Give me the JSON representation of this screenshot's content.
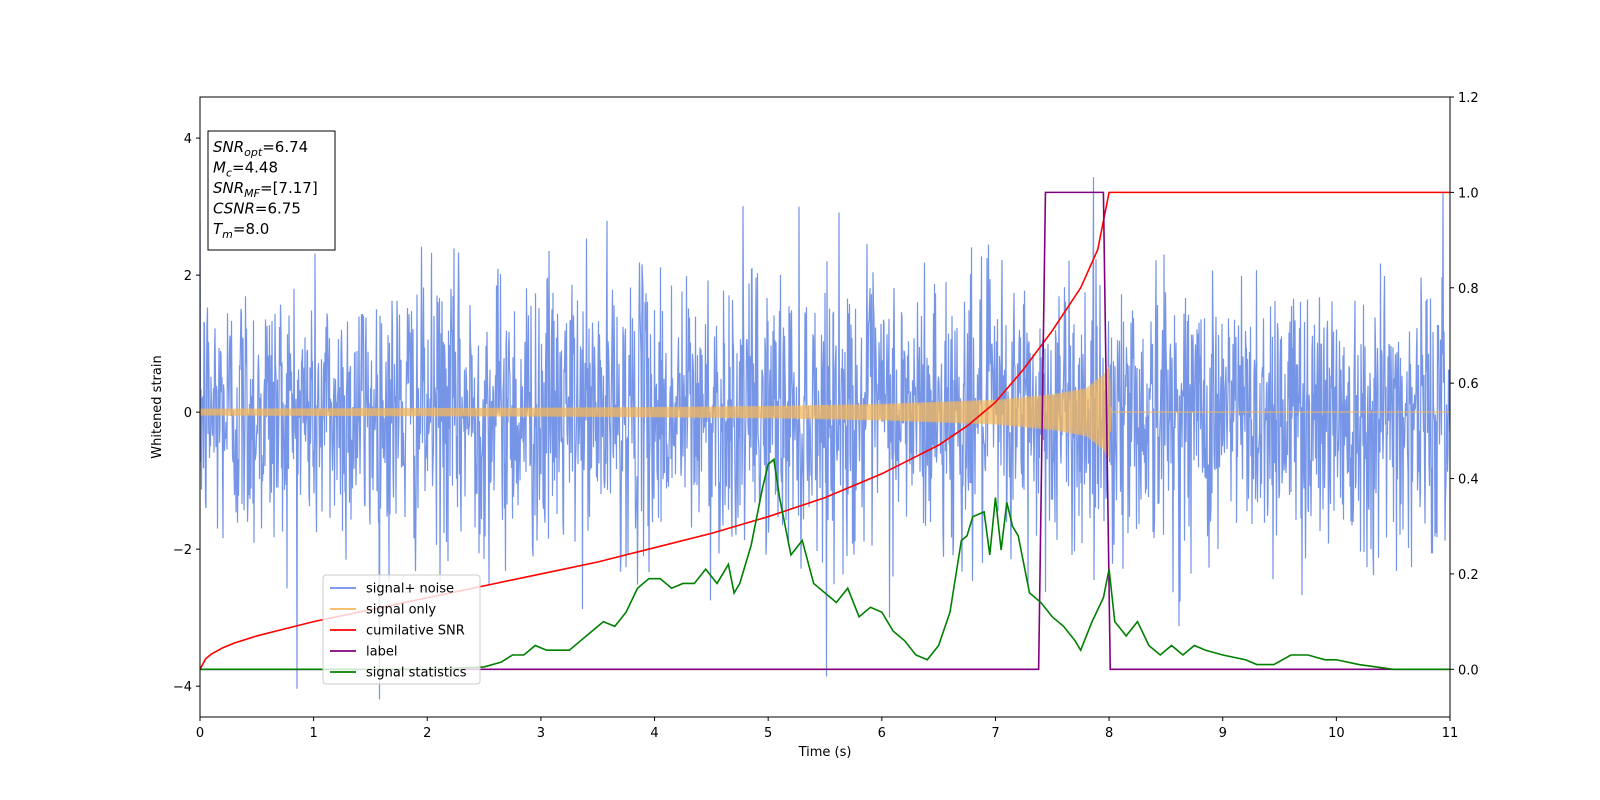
{
  "chart_data": {
    "type": "line",
    "xlabel": "Time (s)",
    "ylabel": "Whitened strain",
    "xlim": [
      0,
      11
    ],
    "ylim": [
      -4.45,
      4.6
    ],
    "y2lim": [
      -0.1,
      1.2
    ],
    "x_ticks": [
      0,
      1,
      2,
      3,
      4,
      5,
      6,
      7,
      8,
      9,
      10,
      11
    ],
    "y_ticks": [
      -4,
      -2,
      0,
      2,
      4
    ],
    "y2_ticks": [
      0.0,
      0.2,
      0.4,
      0.6,
      0.8,
      1.0,
      1.2
    ],
    "grid": false,
    "legend_position": "lower-left",
    "info_box": [
      {
        "base": "SNR",
        "sub": "opt",
        "value": "=6.74"
      },
      {
        "base": "M",
        "sub": "c",
        "value": "=4.48"
      },
      {
        "base": "SNR",
        "sub": "MF",
        "value": "=[7.17]"
      },
      {
        "base": "CSNR",
        "sub": "",
        "value": "=6.75"
      },
      {
        "base": "T",
        "sub": "m",
        "value": "=8.0"
      }
    ],
    "series": [
      {
        "name": "signal+ noise",
        "axis": "left",
        "color": "#6f8fe6",
        "kind": "gaussian_noise",
        "sigma": 1.0,
        "x_range": [
          0,
          11
        ]
      },
      {
        "name": "signal only",
        "axis": "left",
        "color": "#f5b75a",
        "kind": "chirp_envelope",
        "points": [
          [
            0,
            0.05
          ],
          [
            1,
            0.055
          ],
          [
            2,
            0.06
          ],
          [
            3,
            0.065
          ],
          [
            4,
            0.075
          ],
          [
            5,
            0.09
          ],
          [
            6,
            0.12
          ],
          [
            7,
            0.18
          ],
          [
            7.5,
            0.26
          ],
          [
            7.8,
            0.35
          ],
          [
            7.95,
            0.55
          ],
          [
            8.0,
            0.68
          ],
          [
            8.02,
            0.0
          ],
          [
            11,
            0.0
          ]
        ]
      },
      {
        "name": "cumilative SNR",
        "axis": "right",
        "color": "#ff0000",
        "x": [
          0,
          0.05,
          0.1,
          0.2,
          0.3,
          0.5,
          0.75,
          1,
          1.5,
          2,
          2.5,
          3,
          3.5,
          4,
          4.5,
          5,
          5.5,
          6,
          6.25,
          6.5,
          6.75,
          7,
          7.25,
          7.5,
          7.75,
          7.9,
          8.0,
          11
        ],
        "values": [
          0.0,
          0.022,
          0.032,
          0.045,
          0.055,
          0.07,
          0.085,
          0.1,
          0.125,
          0.15,
          0.175,
          0.2,
          0.225,
          0.255,
          0.285,
          0.32,
          0.36,
          0.41,
          0.44,
          0.47,
          0.51,
          0.56,
          0.63,
          0.71,
          0.8,
          0.88,
          1.0,
          1.0
        ]
      },
      {
        "name": "label",
        "axis": "right",
        "color": "#800080",
        "x": [
          0,
          7.38,
          7.44,
          7.95,
          8.01,
          11
        ],
        "values": [
          0,
          0,
          1,
          1,
          0,
          0
        ]
      },
      {
        "name": "signal statistics",
        "axis": "right",
        "color": "#008000",
        "x": [
          0,
          0.5,
          1,
          1.5,
          2,
          2.25,
          2.5,
          2.65,
          2.75,
          2.85,
          2.95,
          3.05,
          3.15,
          3.25,
          3.35,
          3.45,
          3.55,
          3.65,
          3.75,
          3.85,
          3.95,
          4.05,
          4.15,
          4.25,
          4.35,
          4.45,
          4.55,
          4.65,
          4.7,
          4.75,
          4.8,
          4.85,
          4.9,
          4.95,
          5.0,
          5.05,
          5.1,
          5.2,
          5.3,
          5.4,
          5.5,
          5.6,
          5.7,
          5.8,
          5.9,
          6.0,
          6.1,
          6.2,
          6.3,
          6.4,
          6.5,
          6.6,
          6.7,
          6.75,
          6.8,
          6.9,
          6.95,
          7.0,
          7.05,
          7.1,
          7.15,
          7.2,
          7.3,
          7.4,
          7.5,
          7.6,
          7.7,
          7.75,
          7.85,
          7.95,
          8.0,
          8.05,
          8.15,
          8.25,
          8.35,
          8.45,
          8.55,
          8.65,
          8.75,
          8.85,
          9.0,
          9.2,
          9.3,
          9.45,
          9.6,
          9.75,
          9.9,
          10.0,
          10.2,
          10.5,
          10.75,
          11.0
        ],
        "values": [
          0.0,
          0.0,
          0.0,
          0.0,
          0.0,
          0.002,
          0.005,
          0.015,
          0.03,
          0.03,
          0.05,
          0.04,
          0.04,
          0.04,
          0.06,
          0.08,
          0.1,
          0.09,
          0.12,
          0.17,
          0.19,
          0.19,
          0.17,
          0.18,
          0.18,
          0.21,
          0.18,
          0.22,
          0.16,
          0.18,
          0.22,
          0.26,
          0.32,
          0.38,
          0.43,
          0.44,
          0.36,
          0.24,
          0.27,
          0.18,
          0.16,
          0.14,
          0.17,
          0.11,
          0.13,
          0.12,
          0.08,
          0.06,
          0.03,
          0.02,
          0.05,
          0.12,
          0.27,
          0.28,
          0.32,
          0.33,
          0.24,
          0.36,
          0.25,
          0.35,
          0.3,
          0.28,
          0.16,
          0.14,
          0.11,
          0.09,
          0.06,
          0.04,
          0.1,
          0.15,
          0.21,
          0.1,
          0.07,
          0.1,
          0.05,
          0.03,
          0.05,
          0.03,
          0.05,
          0.04,
          0.03,
          0.02,
          0.01,
          0.01,
          0.03,
          0.03,
          0.02,
          0.02,
          0.01,
          0.0,
          0.0,
          0.0
        ]
      }
    ]
  }
}
